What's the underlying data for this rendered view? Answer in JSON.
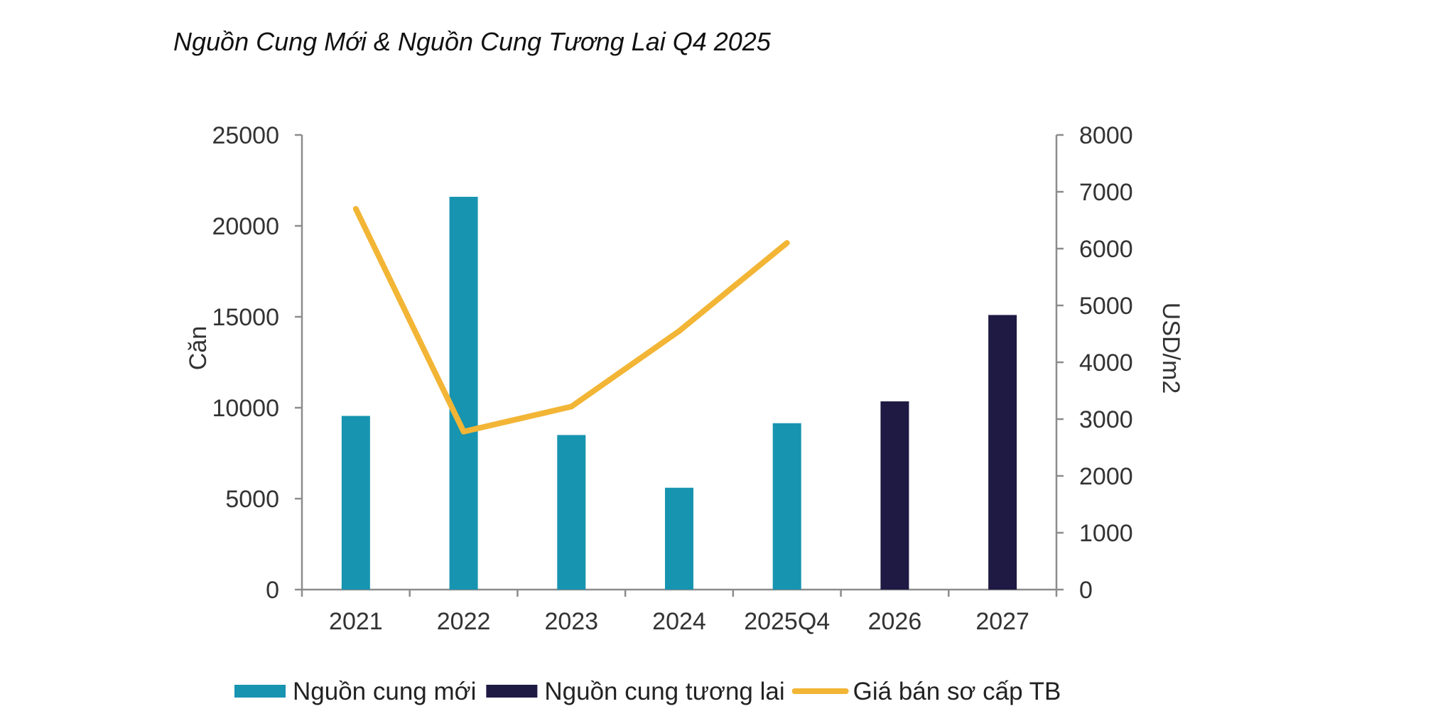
{
  "chart_data": {
    "type": "bar",
    "title": "Nguồn Cung Mới & Nguồn Cung Tương Lai Q4 2025",
    "categories": [
      "2021",
      "2022",
      "2023",
      "2024",
      "2025Q4",
      "2026",
      "2027"
    ],
    "series": [
      {
        "name": "Nguồn cung mới",
        "type": "bar",
        "axis": "left",
        "color": "#1794B0",
        "values": [
          9550,
          21600,
          8500,
          5600,
          9150,
          null,
          null
        ]
      },
      {
        "name": "Nguồn cung tương lai",
        "type": "bar",
        "axis": "left",
        "color": "#1E1A43",
        "values": [
          null,
          null,
          null,
          null,
          null,
          10350,
          15100
        ]
      },
      {
        "name": "Giá bán sơ cấp  TB",
        "type": "line",
        "axis": "right",
        "color": "#F2B535",
        "values": [
          6700,
          2780,
          3220,
          4550,
          6100,
          null,
          null
        ]
      }
    ],
    "ylabel": "Căn",
    "y2label": "USD/m2",
    "ylim": [
      0,
      25000
    ],
    "y2lim": [
      0,
      8000
    ],
    "yticks": [
      "0",
      "5000",
      "10000",
      "15000",
      "20000",
      "25000"
    ],
    "y2ticks": [
      "0",
      "1000",
      "2000",
      "3000",
      "4000",
      "5000",
      "6000",
      "7000",
      "8000"
    ],
    "grid": false,
    "legend_position": "bottom"
  }
}
